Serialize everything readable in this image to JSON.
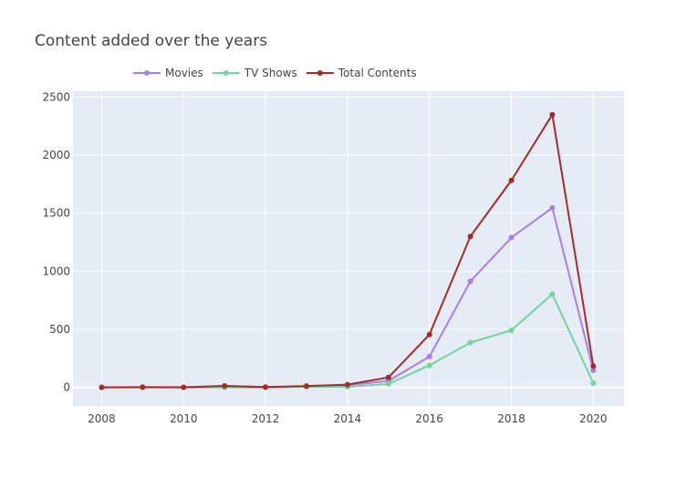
{
  "chart_data": {
    "type": "line",
    "title": "Content added over the years",
    "xlabel": "",
    "ylabel": "",
    "x": [
      2008,
      2009,
      2010,
      2011,
      2012,
      2013,
      2014,
      2015,
      2016,
      2017,
      2018,
      2019,
      2020
    ],
    "xlim": [
      2007.3,
      2020.75
    ],
    "ylim": [
      -160,
      2550
    ],
    "xticks": [
      2008,
      2010,
      2012,
      2014,
      2016,
      2018,
      2020
    ],
    "xtick_labels": [
      "2008",
      "2010",
      "2012",
      "2014",
      "2016",
      "2018",
      "2020"
    ],
    "yticks": [
      0,
      500,
      1000,
      1500,
      2000,
      2500
    ],
    "ytick_labels": [
      "0",
      "500",
      "1000",
      "1500",
      "2000",
      "2500"
    ],
    "grid": true,
    "legend_position": "top",
    "background": "#e5ecf6",
    "series": [
      {
        "name": "Movies",
        "color": "#ab7ee3",
        "values": [
          1,
          2,
          1,
          13,
          3,
          6,
          19,
          56,
          265,
          914,
          1290,
          1546,
          147
        ]
      },
      {
        "name": "TV Shows",
        "color": "#70d69e",
        "values": [
          0,
          0,
          0,
          0,
          0,
          6,
          5,
          30,
          190,
          386,
          492,
          803,
          37
        ]
      },
      {
        "name": "Total Contents",
        "color": "#a52a2a",
        "values": [
          1,
          2,
          1,
          13,
          3,
          12,
          24,
          86,
          455,
          1300,
          1782,
          2349,
          184
        ]
      }
    ]
  }
}
